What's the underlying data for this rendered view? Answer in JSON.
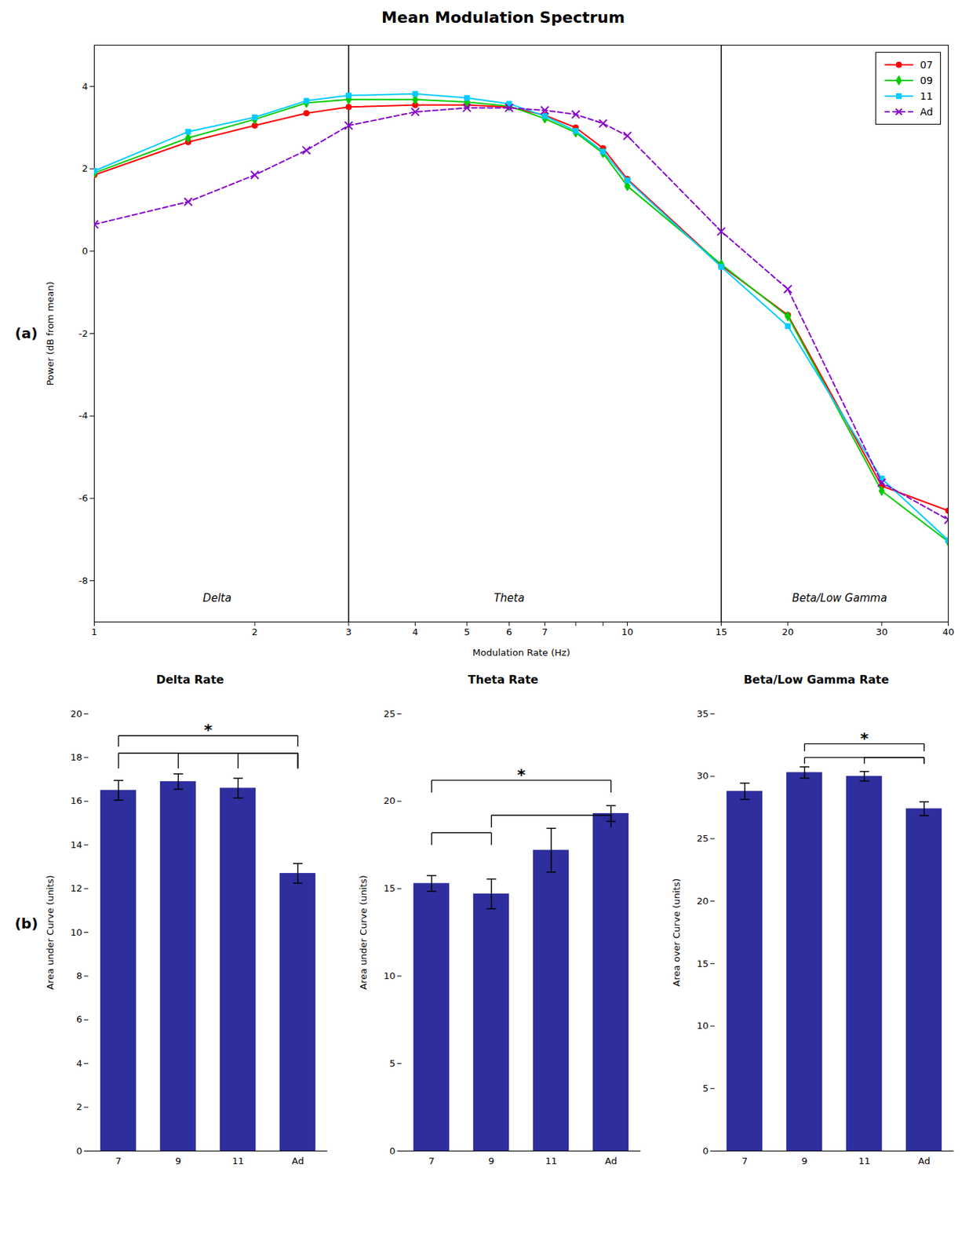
{
  "chart_data": [
    {
      "type": "line",
      "title": "Mean Modulation Spectrum",
      "panel_label": "(a)",
      "xlabel": "Modulation Rate (Hz)",
      "ylabel": "Power (dB from mean)",
      "log": "x",
      "x": [
        1,
        1.5,
        2,
        2.5,
        3,
        4,
        5,
        6,
        7,
        8,
        9,
        10,
        15,
        20,
        30,
        40
      ],
      "xlim": [
        1,
        40
      ],
      "xticks": [
        1,
        2,
        3,
        4,
        5,
        6,
        7,
        8,
        9,
        10,
        15,
        20,
        30,
        40
      ],
      "ylim": [
        -9,
        5
      ],
      "yticks": [
        -8,
        -6,
        -4,
        -2,
        0,
        2,
        4
      ],
      "grid": false,
      "legend": "upper right",
      "series": [
        {
          "name": "07",
          "color": "#ff0000",
          "marker": "circle",
          "line_style": "solid",
          "values": [
            1.85,
            2.65,
            3.05,
            3.35,
            3.5,
            3.55,
            3.55,
            3.5,
            3.3,
            3.0,
            2.5,
            1.75,
            -0.35,
            -1.55,
            -5.7,
            -6.3
          ]
        },
        {
          "name": "09",
          "color": "#00cc00",
          "marker": "diamond",
          "line_style": "solid",
          "values": [
            1.9,
            2.75,
            3.2,
            3.6,
            3.68,
            3.68,
            3.62,
            3.52,
            3.22,
            2.88,
            2.38,
            1.58,
            -0.32,
            -1.58,
            -5.82,
            -7.05
          ]
        },
        {
          "name": "11",
          "color": "#00ccff",
          "marker": "square",
          "line_style": "solid",
          "values": [
            1.95,
            2.9,
            3.25,
            3.65,
            3.78,
            3.82,
            3.72,
            3.58,
            3.28,
            2.92,
            2.42,
            1.72,
            -0.38,
            -1.82,
            -5.52,
            -7.02
          ]
        },
        {
          "name": "Ad",
          "color": "#8800cc",
          "marker": "x",
          "line_style": "dashed",
          "values": [
            0.65,
            1.2,
            1.85,
            2.45,
            3.05,
            3.38,
            3.48,
            3.48,
            3.42,
            3.32,
            3.1,
            2.8,
            0.48,
            -0.92,
            -5.62,
            -6.52
          ]
        }
      ],
      "vlines": [
        3,
        15
      ],
      "annotations": [
        {
          "text": "Delta",
          "x": 1.7,
          "y": -8.5
        },
        {
          "text": "Theta",
          "x": 6.0,
          "y": -8.5
        },
        {
          "text": "Beta/Low Gamma",
          "x": 25.0,
          "y": -8.5
        }
      ]
    },
    {
      "type": "bar",
      "title": "Delta Rate",
      "panel_label": "(b)",
      "categories": [
        "7",
        "9",
        "11",
        "Ad"
      ],
      "values": [
        16.5,
        16.9,
        16.6,
        12.7
      ],
      "errors": [
        0.45,
        0.35,
        0.45,
        0.45
      ],
      "color": "#2e2e9e",
      "error_color": "#000000",
      "ylabel": "Area under Curve (units)",
      "ylim": [
        0,
        20
      ],
      "yticks": [
        0,
        2,
        4,
        6,
        8,
        10,
        12,
        14,
        16,
        18,
        20
      ],
      "grid": false,
      "brackets": [
        {
          "x1": "7",
          "x2": "Ad",
          "y_base": 17.5,
          "y_tip": 18.2
        },
        {
          "x1": "9",
          "x2": "Ad",
          "y_base": 17.5,
          "y_tip": 18.2
        },
        {
          "x1": "11",
          "x2": "Ad",
          "y_base": 17.5,
          "y_tip": 18.2
        },
        {
          "x1": "7",
          "x2": "Ad",
          "y_base": 18.5,
          "y_tip": 19.0,
          "label": "*"
        }
      ]
    },
    {
      "type": "bar",
      "title": "Theta Rate",
      "categories": [
        "7",
        "9",
        "11",
        "Ad"
      ],
      "values": [
        15.3,
        14.7,
        17.2,
        19.3
      ],
      "errors": [
        0.45,
        0.85,
        1.25,
        0.45
      ],
      "color": "#2e2e9e",
      "error_color": "#000000",
      "ylabel": "Area under Curve (units)",
      "ylim": [
        0,
        25
      ],
      "yticks": [
        0,
        5,
        10,
        15,
        20,
        25
      ],
      "grid": false,
      "brackets": [
        {
          "x1": "7",
          "x2": "9",
          "y_base": 17.5,
          "y_tip": 18.2
        },
        {
          "x1": "9",
          "x2": "Ad",
          "y_base": 18.5,
          "y_tip": 19.2
        },
        {
          "x1": "7",
          "x2": "Ad",
          "y_base": 20.5,
          "y_tip": 21.2,
          "label": "*"
        }
      ]
    },
    {
      "type": "bar",
      "title": "Beta/Low Gamma Rate",
      "categories": [
        "7",
        "9",
        "11",
        "Ad"
      ],
      "values": [
        28.8,
        30.3,
        30.0,
        27.4
      ],
      "errors": [
        0.65,
        0.45,
        0.38,
        0.55
      ],
      "color": "#2e2e9e",
      "error_color": "#000000",
      "ylabel": "Area over Curve (units)",
      "ylim": [
        0,
        35
      ],
      "yticks": [
        0,
        5,
        10,
        15,
        20,
        25,
        30,
        35
      ],
      "grid": false,
      "brackets": [
        {
          "x1": "9",
          "x2": "Ad",
          "y_base": 31.0,
          "y_tip": 31.5
        },
        {
          "x1": "11",
          "x2": "Ad",
          "y_base": 31.0,
          "y_tip": 31.5
        },
        {
          "x1": "9",
          "x2": "Ad",
          "y_base": 32.0,
          "y_tip": 32.6,
          "label": "*"
        }
      ]
    }
  ]
}
